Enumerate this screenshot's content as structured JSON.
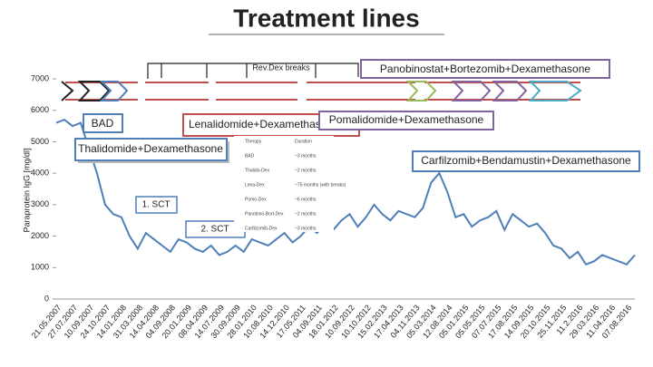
{
  "chart_data": {
    "type": "line",
    "title": "Treatment lines",
    "y_label": "Paraprotein IgG [mg/dl]",
    "categories": [
      "21.05.2007",
      null,
      "27.07.2007",
      null,
      "10.09.2007",
      null,
      "24.10.2007",
      null,
      "14.01.2008",
      null,
      "31.03.2008",
      null,
      "14.04.2008",
      null,
      "04.09.2008",
      null,
      "20.01.2009",
      null,
      "08.04.2009",
      null,
      "14.07.2009",
      null,
      "30.09.2009",
      null,
      "28.01.2010",
      null,
      "10.08.2010",
      null,
      "14.12.2010",
      null,
      "17.05.2011",
      null,
      "04.09.2011",
      null,
      "18.01.2012",
      null,
      "10.09.2012",
      null,
      "10.10.2012",
      null,
      "15.02.2013",
      null,
      "17.04.2013",
      null,
      "04.11.2013",
      null,
      "05.03.2014",
      null,
      "12.08.2014",
      null,
      "05.01.2015",
      null,
      "05.05.2015",
      null,
      "07.07.2015",
      null,
      "17.08.2015",
      null,
      "14.09.2015",
      null,
      "20.10.2015",
      null,
      "25.11.2015",
      null,
      "11.2.2016",
      null,
      "29.03.2016",
      null,
      "11.04.2016",
      null,
      "07.08.2016",
      null
    ],
    "series": [
      {
        "color": "#4f7fb8",
        "values": [
          5600,
          5700,
          5500,
          5600,
          4800,
          4000,
          3000,
          2700,
          2600,
          2000,
          1600,
          2100,
          1900,
          1700,
          1500,
          1900,
          1800,
          1600,
          1500,
          1700,
          1400,
          1500,
          1700,
          1500,
          1900,
          1800,
          1700,
          1900,
          2100,
          1800,
          2000,
          2300,
          2100,
          2400,
          2200,
          2500,
          2700,
          2300,
          2600,
          3000,
          2700,
          2500,
          2800,
          2700,
          2600,
          2900,
          3700,
          4000,
          3400,
          2600,
          2700,
          2300,
          2500,
          2600,
          2800,
          2200,
          2700,
          2500,
          2300,
          2400,
          2100,
          1700,
          1600,
          1300,
          1500,
          1100,
          1200,
          1400,
          1300,
          1200,
          1100,
          1400
        ]
      }
    ],
    "ylim": [
      0,
      7000
    ],
    "yticks": [
      0,
      1000,
      2000,
      3000,
      4000,
      5000,
      6000,
      7000
    ],
    "annotations": {
      "breaks": "Rev.Dex breaks",
      "bad": "BAD",
      "thal": "Thalidomide+Dexamethasone",
      "len": "Lenalidomide+Dexamethasone",
      "pom": "Pomalidomide+Dexamethasone",
      "pano": "Panobinostat+Bortezomib+Dexamethasone",
      "carf": "Carfilzomib+Bendamustin+Dexamethasone",
      "sct1": "1. SCT",
      "sct2": "2. SCT"
    }
  },
  "table": {
    "header": [
      "Therapy",
      "Duration"
    ],
    "rows": [
      [
        "BAD",
        "~3 months"
      ],
      [
        "Thalido-Dex",
        "~2 months"
      ],
      [
        "Lena-Dex",
        "~75 months (with breaks)"
      ],
      [
        "Pomo-Dex",
        "~6 months"
      ],
      [
        "Panobino-Bort-Dex",
        "~2 months"
      ],
      [
        "Carfilzomib-Dex",
        "~3 months"
      ]
    ]
  }
}
